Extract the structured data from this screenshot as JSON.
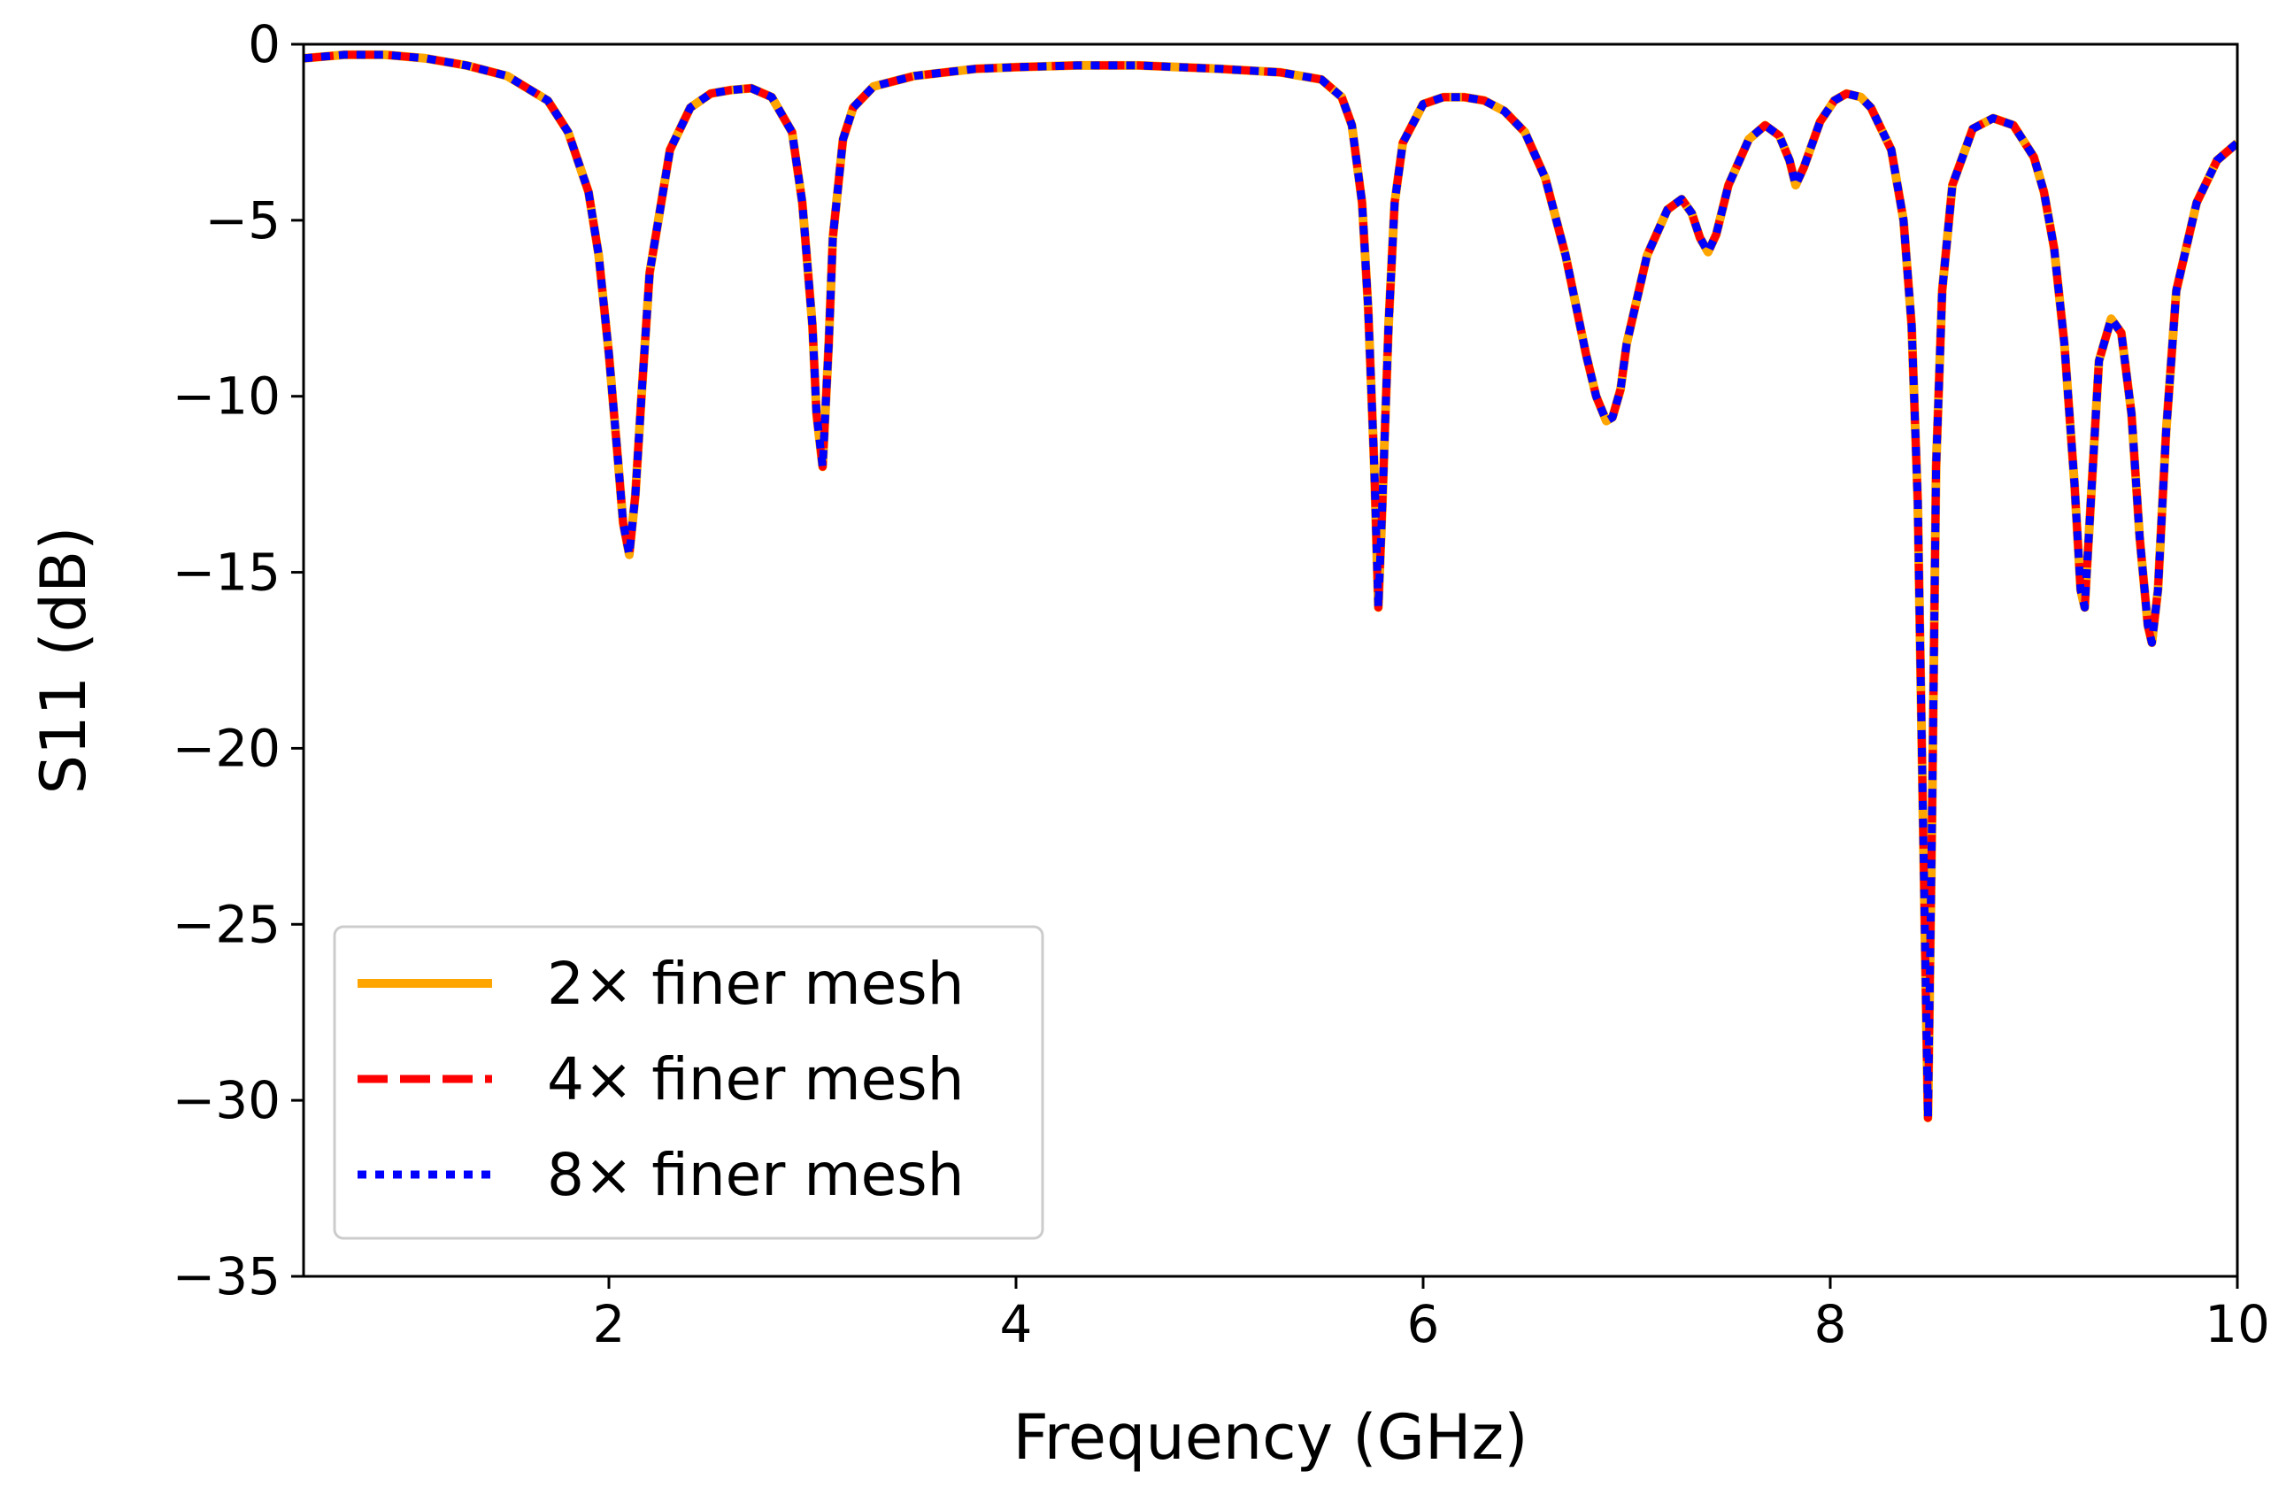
{
  "chart_data": {
    "type": "line",
    "title": "",
    "xlabel": "Frequency (GHz)",
    "ylabel": "S11 (dB)",
    "xlim": [
      0.5,
      10
    ],
    "ylim": [
      -35,
      0
    ],
    "x_ticks": [
      2,
      4,
      6,
      8,
      10
    ],
    "x_tick_labels": [
      "2",
      "4",
      "6",
      "8",
      "10"
    ],
    "y_ticks": [
      0,
      -5,
      -10,
      -15,
      -20,
      -25,
      -30,
      -35
    ],
    "y_tick_labels": [
      "0",
      "−5",
      "−10",
      "−15",
      "−20",
      "−25",
      "−30",
      "−35"
    ],
    "grid": false,
    "legend_position": "lower-left",
    "series": [
      {
        "name": "2× finer mesh",
        "color": "#ffa500",
        "style": "solid"
      },
      {
        "name": "4× finer mesh",
        "color": "#ff0000",
        "style": "dashed"
      },
      {
        "name": "8× finer mesh",
        "color": "#0000ff",
        "style": "dotted"
      }
    ],
    "x": [
      0.5,
      0.7,
      0.9,
      1.1,
      1.3,
      1.5,
      1.7,
      1.8,
      1.9,
      1.95,
      2.0,
      2.04,
      2.07,
      2.1,
      2.13,
      2.16,
      2.2,
      2.3,
      2.4,
      2.5,
      2.6,
      2.7,
      2.8,
      2.9,
      2.95,
      3.0,
      3.02,
      3.05,
      3.08,
      3.1,
      3.15,
      3.2,
      3.3,
      3.5,
      3.8,
      4.0,
      4.3,
      4.6,
      5.0,
      5.3,
      5.5,
      5.6,
      5.65,
      5.7,
      5.73,
      5.76,
      5.78,
      5.8,
      5.83,
      5.86,
      5.9,
      6.0,
      6.1,
      6.2,
      6.3,
      6.4,
      6.5,
      6.6,
      6.7,
      6.8,
      6.85,
      6.9,
      6.93,
      6.97,
      7.0,
      7.1,
      7.2,
      7.27,
      7.32,
      7.36,
      7.4,
      7.44,
      7.5,
      7.6,
      7.68,
      7.75,
      7.8,
      7.83,
      7.87,
      7.95,
      8.02,
      8.08,
      8.15,
      8.2,
      8.3,
      8.36,
      8.4,
      8.43,
      8.45,
      8.47,
      8.48,
      8.5,
      8.52,
      8.55,
      8.6,
      8.7,
      8.8,
      8.9,
      9.0,
      9.05,
      9.1,
      9.15,
      9.2,
      9.23,
      9.25,
      9.28,
      9.32,
      9.38,
      9.43,
      9.48,
      9.52,
      9.56,
      9.58,
      9.61,
      9.65,
      9.7,
      9.8,
      9.9,
      10.0
    ],
    "values": [
      -0.4,
      -0.3,
      -0.3,
      -0.4,
      -0.6,
      -0.9,
      -1.6,
      -2.5,
      -4.2,
      -6.0,
      -8.8,
      -11.5,
      -13.6,
      -14.5,
      -12.8,
      -10.0,
      -6.5,
      -3.0,
      -1.8,
      -1.4,
      -1.3,
      -1.25,
      -1.5,
      -2.5,
      -4.5,
      -8.0,
      -10.5,
      -12.0,
      -8.5,
      -5.5,
      -2.7,
      -1.8,
      -1.2,
      -0.9,
      -0.7,
      -0.65,
      -0.6,
      -0.6,
      -0.7,
      -0.8,
      -1.0,
      -1.5,
      -2.3,
      -4.5,
      -7.5,
      -12.0,
      -16.0,
      -13.0,
      -8.0,
      -4.5,
      -2.8,
      -1.7,
      -1.5,
      -1.5,
      -1.6,
      -1.9,
      -2.5,
      -3.8,
      -6.0,
      -8.8,
      -10.0,
      -10.7,
      -10.6,
      -9.8,
      -8.5,
      -6.0,
      -4.7,
      -4.4,
      -4.8,
      -5.5,
      -5.9,
      -5.4,
      -4.0,
      -2.7,
      -2.3,
      -2.6,
      -3.3,
      -4.0,
      -3.5,
      -2.2,
      -1.6,
      -1.4,
      -1.5,
      -1.8,
      -3.0,
      -5.0,
      -8.0,
      -13.0,
      -20.0,
      -27.0,
      -30.5,
      -22.0,
      -12.0,
      -7.0,
      -4.0,
      -2.4,
      -2.1,
      -2.3,
      -3.2,
      -4.2,
      -5.8,
      -8.5,
      -12.5,
      -15.5,
      -16.0,
      -13.0,
      -9.0,
      -7.8,
      -8.2,
      -10.5,
      -14.0,
      -16.5,
      -17.0,
      -15.5,
      -11.0,
      -7.0,
      -4.5,
      -3.3,
      -2.8
    ]
  }
}
